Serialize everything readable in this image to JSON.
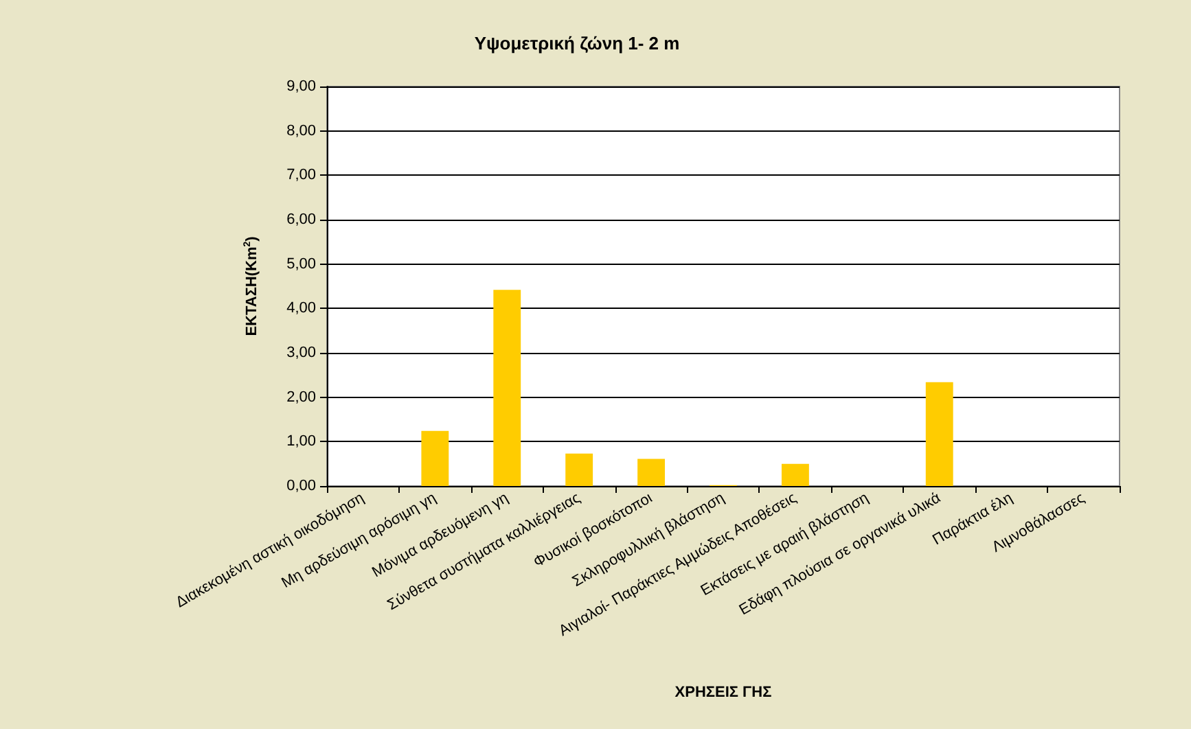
{
  "chart_data": {
    "type": "bar",
    "title": "Υψομετρική ζώνη 1- 2 m",
    "xlabel": "ΧΡΗΣΕΙΣ ΓΗΣ",
    "ylabel": "ΕΚΤΑΣΗ(Km$^{2}$)",
    "categories": [
      "Διακεκομένη αστική οικοδόμηση",
      "Μη αρδεύσιμη αρόσιμη γη",
      "Μόνιμα αρδευόμενη γη",
      "Σύνθετα συστήματα καλλιέργειας",
      "Φυσικοί βοσκότοποι",
      "Σκληροφυλλική βλάστηση",
      "Αιγιαλοί- Παράκτιες Αμμώδεις Αποθέσεις",
      "Εκτάσεις με αραιή βλάστηση",
      "Εδάφη πλούσια σε οργανικά υλικά",
      "Παράκτια έλη",
      "Λιμνοθάλασσες"
    ],
    "values": [
      0,
      1.24,
      4.42,
      0.73,
      0.61,
      0.02,
      0.5,
      0,
      2.34,
      0,
      0
    ],
    "color": "#ffcc00",
    "ylim": [
      0,
      9
    ],
    "yticks": [
      {
        "value": 0,
        "label": "0,00"
      },
      {
        "value": 1,
        "label": "1,00"
      },
      {
        "value": 2,
        "label": "2,00"
      },
      {
        "value": 3,
        "label": "3,00"
      },
      {
        "value": 4,
        "label": "4,00"
      },
      {
        "value": 5,
        "label": "5,00"
      },
      {
        "value": 6,
        "label": "6,00"
      },
      {
        "value": 7,
        "label": "7,00"
      },
      {
        "value": 8,
        "label": "8,00"
      },
      {
        "value": 9,
        "label": "9,00"
      }
    ],
    "grid": "y"
  }
}
